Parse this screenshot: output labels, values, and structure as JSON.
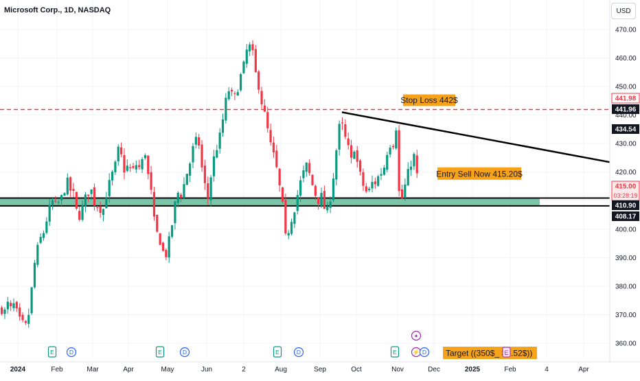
{
  "header": {
    "symbol_title": "Microsoft Corp., 1D, NASDAQ",
    "currency": "USD"
  },
  "colors": {
    "up": "#089981",
    "down": "#f23645",
    "stop_line": "#f23645",
    "zone": "#66bb9a",
    "label_orange": "#f7a21b",
    "axis_text": "#131722",
    "grid": "#f0f3fa",
    "badge_black": "#131722",
    "badge_red": "#f23645",
    "event_earnings": "#089981",
    "event_dividend": "#2962ff",
    "event_split": "#9c27b0"
  },
  "chart_data": {
    "type": "candlestick",
    "title": "Microsoft Corp., 1D, NASDAQ",
    "ylim": [
      355,
      475
    ],
    "y_ticks": [
      360,
      370,
      380,
      390,
      400,
      410,
      420,
      430,
      440,
      450,
      460,
      470
    ],
    "y_tick_labels": [
      "360.00",
      "370.00",
      "380.00",
      "390.00",
      "400.00",
      "410.00",
      "420.00",
      "430.00",
      "440.00",
      "450.00",
      "460.00",
      "470.00"
    ],
    "x_tick_labels": [
      "2024",
      "Feb",
      "Mar",
      "Apr",
      "May",
      "Jun",
      "2",
      "Aug",
      "Sep",
      "Oct",
      "Nov",
      "Dec",
      "2025",
      "Feb",
      "4",
      "Apr"
    ],
    "price_path": [
      [
        0,
        372
      ],
      [
        6,
        371
      ],
      [
        10,
        374
      ],
      [
        16,
        371
      ],
      [
        20,
        375
      ],
      [
        24,
        369
      ],
      [
        30,
        367
      ],
      [
        36,
        366
      ],
      [
        42,
        372
      ],
      [
        46,
        383
      ],
      [
        50,
        390
      ],
      [
        56,
        396
      ],
      [
        62,
        399
      ],
      [
        68,
        405
      ],
      [
        74,
        410
      ],
      [
        80,
        408
      ],
      [
        86,
        410
      ],
      [
        90,
        412
      ],
      [
        96,
        417
      ],
      [
        100,
        414
      ],
      [
        106,
        412
      ],
      [
        110,
        406
      ],
      [
        116,
        404
      ],
      [
        120,
        410
      ],
      [
        126,
        412
      ],
      [
        130,
        415
      ],
      [
        136,
        409
      ],
      [
        142,
        408
      ],
      [
        148,
        406
      ],
      [
        154,
        413
      ],
      [
        160,
        418
      ],
      [
        166,
        422
      ],
      [
        170,
        428
      ],
      [
        176,
        425
      ],
      [
        180,
        420
      ],
      [
        186,
        423
      ],
      [
        190,
        419
      ],
      [
        196,
        423
      ],
      [
        200,
        421
      ],
      [
        206,
        424
      ],
      [
        210,
        427
      ],
      [
        214,
        419
      ],
      [
        218,
        414
      ],
      [
        222,
        404
      ],
      [
        226,
        399
      ],
      [
        230,
        397
      ],
      [
        234,
        394
      ],
      [
        238,
        390
      ],
      [
        242,
        392
      ],
      [
        246,
        398
      ],
      [
        250,
        403
      ],
      [
        254,
        410
      ],
      [
        258,
        413
      ],
      [
        262,
        412
      ],
      [
        268,
        417
      ],
      [
        272,
        421
      ],
      [
        276,
        424
      ],
      [
        280,
        429
      ],
      [
        284,
        431
      ],
      [
        288,
        430
      ],
      [
        292,
        422
      ],
      [
        296,
        417
      ],
      [
        300,
        409
      ],
      [
        304,
        416
      ],
      [
        308,
        423
      ],
      [
        312,
        427
      ],
      [
        316,
        430
      ],
      [
        320,
        434
      ],
      [
        324,
        440
      ],
      [
        328,
        446
      ],
      [
        332,
        449
      ],
      [
        336,
        447
      ],
      [
        340,
        446
      ],
      [
        344,
        449
      ],
      [
        348,
        453
      ],
      [
        352,
        456
      ],
      [
        356,
        460
      ],
      [
        360,
        466
      ],
      [
        362,
        464
      ],
      [
        366,
        462
      ],
      [
        370,
        455
      ],
      [
        374,
        452
      ],
      [
        378,
        446
      ],
      [
        382,
        442
      ],
      [
        386,
        438
      ],
      [
        390,
        432
      ],
      [
        394,
        428
      ],
      [
        398,
        425
      ],
      [
        402,
        420
      ],
      [
        406,
        414
      ],
      [
        410,
        408
      ],
      [
        414,
        398
      ],
      [
        416,
        391
      ],
      [
        418,
        399
      ],
      [
        422,
        403
      ],
      [
        426,
        406
      ],
      [
        430,
        410
      ],
      [
        434,
        415
      ],
      [
        438,
        418
      ],
      [
        442,
        421
      ],
      [
        446,
        423
      ],
      [
        450,
        418
      ],
      [
        454,
        415
      ],
      [
        458,
        412
      ],
      [
        462,
        410
      ],
      [
        466,
        412
      ],
      [
        470,
        408
      ],
      [
        474,
        405
      ],
      [
        478,
        410
      ],
      [
        482,
        413
      ],
      [
        486,
        425
      ],
      [
        490,
        430
      ],
      [
        494,
        439
      ],
      [
        498,
        435
      ],
      [
        502,
        431
      ],
      [
        506,
        428
      ],
      [
        510,
        424
      ],
      [
        514,
        429
      ],
      [
        518,
        424
      ],
      [
        522,
        420
      ],
      [
        526,
        416
      ],
      [
        530,
        414
      ],
      [
        534,
        412
      ],
      [
        538,
        415
      ],
      [
        542,
        417
      ],
      [
        546,
        416
      ],
      [
        550,
        419
      ],
      [
        554,
        420
      ],
      [
        558,
        422
      ],
      [
        562,
        427
      ],
      [
        566,
        430
      ],
      [
        570,
        429
      ],
      [
        574,
        434
      ],
      [
        576,
        437
      ],
      [
        578,
        420
      ],
      [
        580,
        411
      ],
      [
        582,
        409
      ],
      [
        586,
        413
      ],
      [
        590,
        417
      ],
      [
        594,
        421
      ],
      [
        598,
        424
      ],
      [
        602,
        426
      ],
      [
        606,
        418
      ],
      [
        608,
        417
      ]
    ],
    "annotations": [
      {
        "kind": "horizontal-line",
        "label": "Stop Loss 442$",
        "value": 441.96,
        "style": "dashed"
      },
      {
        "kind": "trendline",
        "label": "",
        "from": [
          "Sep",
          441.0
        ],
        "to": [
          "Apr",
          423.5
        ]
      },
      {
        "kind": "zone",
        "label": "",
        "from": 408.17,
        "to": 410.9
      },
      {
        "kind": "label",
        "text": "Entry Sell Now 415.20$",
        "value": 419.5
      },
      {
        "kind": "label",
        "text": "Target ((350$_ 3",
        "suffix": ".52$))"
      }
    ],
    "price_badges": [
      {
        "value": 441.98,
        "text": "441.98",
        "variant": "red-outline"
      },
      {
        "value": 441.96,
        "text": "441.96",
        "variant": "black"
      },
      {
        "value": 434.54,
        "text": "434.54",
        "variant": "black"
      },
      {
        "value": 415.0,
        "text": "415.00",
        "sub": "03:28:19",
        "variant": "red"
      },
      {
        "value": 410.9,
        "text": "410.90",
        "variant": "black"
      },
      {
        "value": 408.17,
        "text": "408.17",
        "variant": "black"
      }
    ],
    "events": [
      {
        "type": "earnings",
        "letter": "E",
        "month": "Feb"
      },
      {
        "type": "dividend",
        "letter": "D",
        "month": "Feb"
      },
      {
        "type": "earnings",
        "letter": "E",
        "month": "May"
      },
      {
        "type": "dividend",
        "letter": "D",
        "month": "May"
      },
      {
        "type": "earnings",
        "letter": "E",
        "month": "Aug"
      },
      {
        "type": "dividend",
        "letter": "D",
        "month": "Aug"
      },
      {
        "type": "earnings",
        "letter": "E",
        "month": "Nov"
      },
      {
        "type": "split",
        "letter": "⚡",
        "month": "Nov"
      },
      {
        "type": "dividend",
        "letter": "D",
        "month": "Nov"
      }
    ],
    "grid": true
  }
}
